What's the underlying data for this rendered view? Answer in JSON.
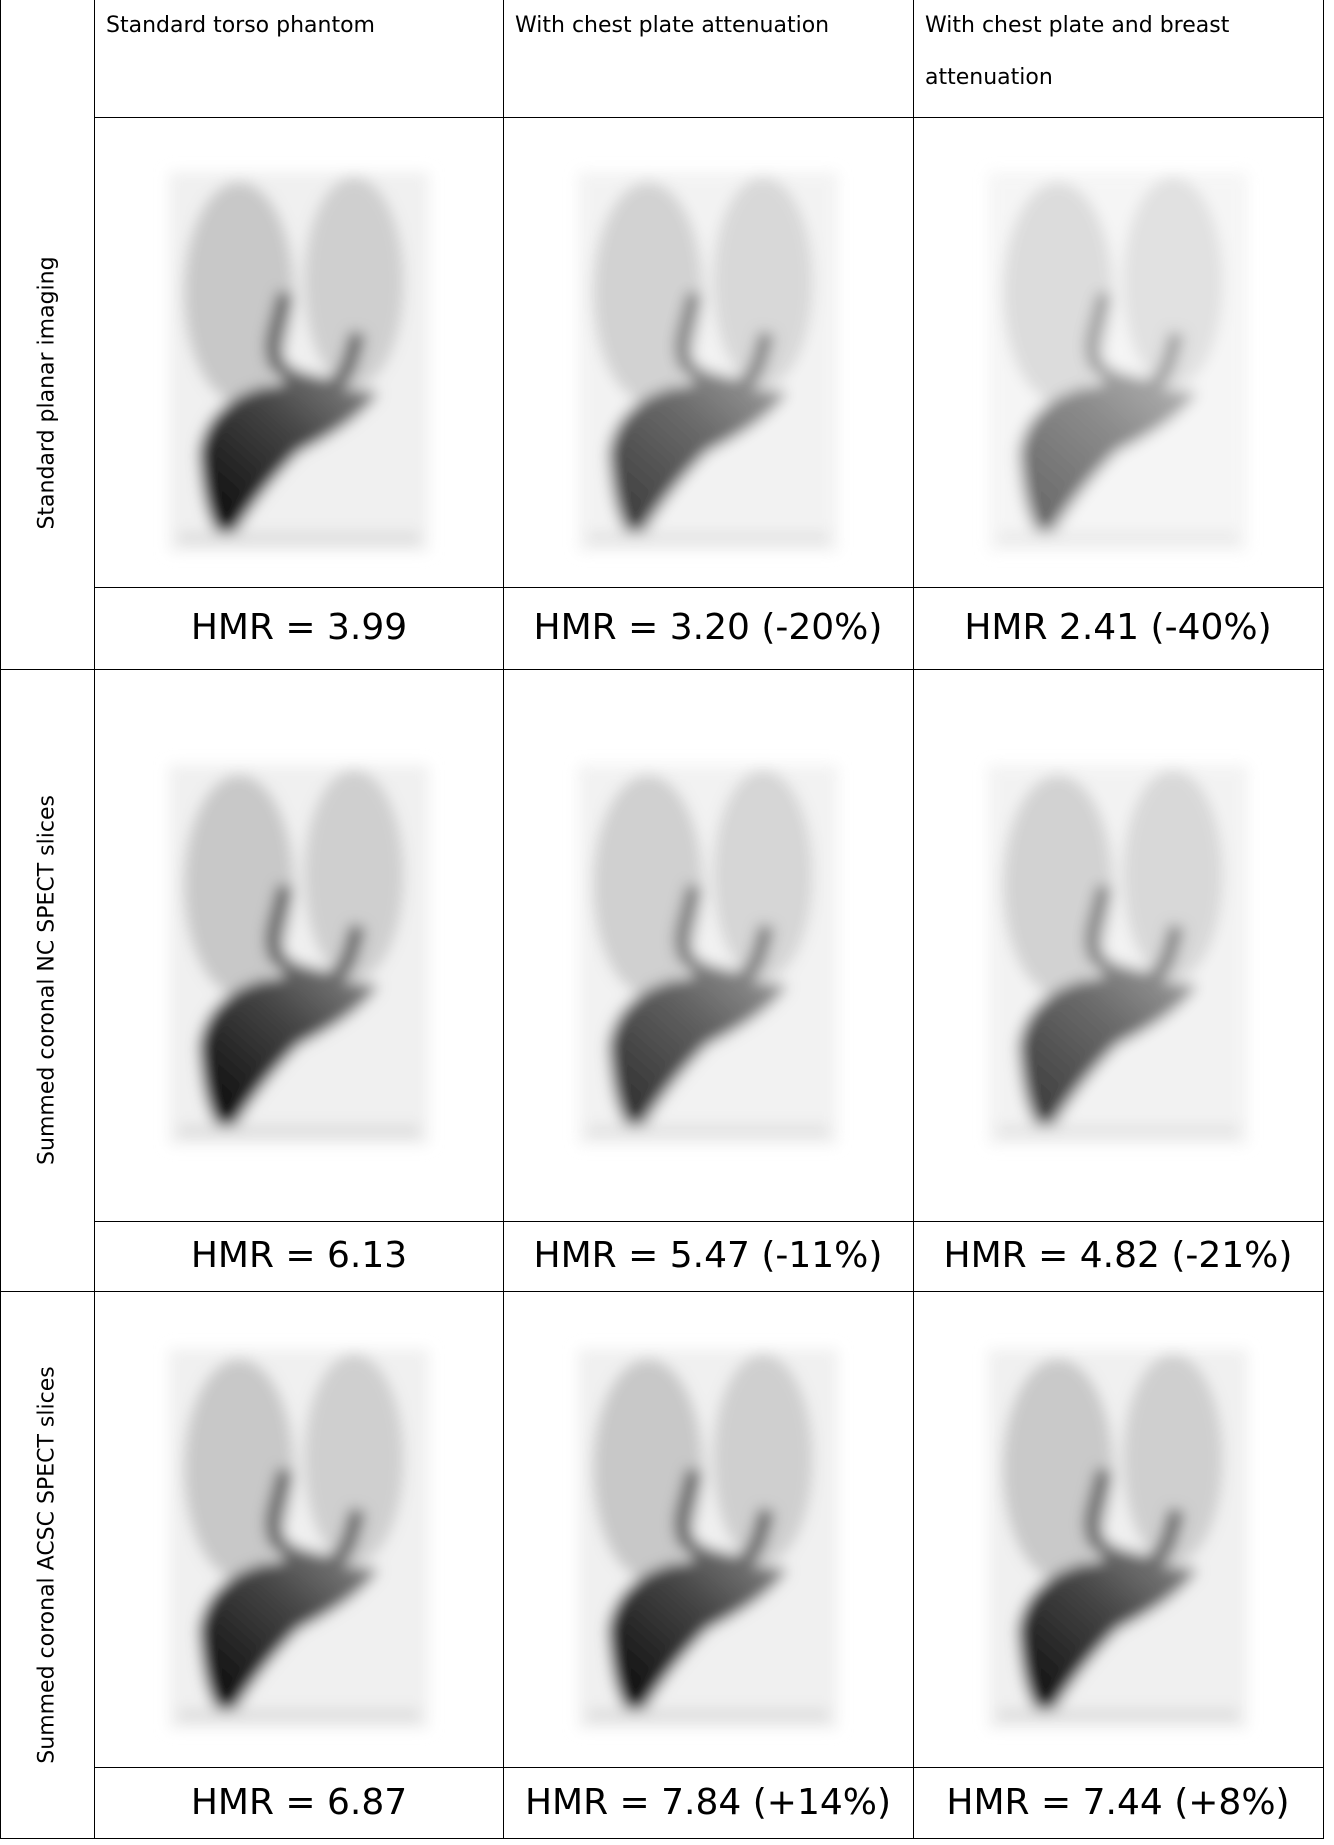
{
  "header": {
    "columns": [
      "Standard torso phantom",
      "With chest plate attenuation",
      "With chest plate and breast attenuation"
    ]
  },
  "rows": [
    {
      "label": "Standard planar imaging",
      "values": [
        "HMR = 3.99",
        "HMR = 3.20 (-20%)",
        "HMR 2.41 (-40%)"
      ]
    },
    {
      "label": "Summed coronal NC SPECT slices",
      "values": [
        "HMR = 6.13",
        "HMR = 5.47 (-11%)",
        "HMR = 4.82 (-21%)"
      ]
    },
    {
      "label": "Summed coronal ACSC SPECT slices",
      "values": [
        "HMR = 6.87",
        "HMR = 7.84 (+14%)",
        "HMR = 7.44 (+8%)"
      ]
    }
  ]
}
